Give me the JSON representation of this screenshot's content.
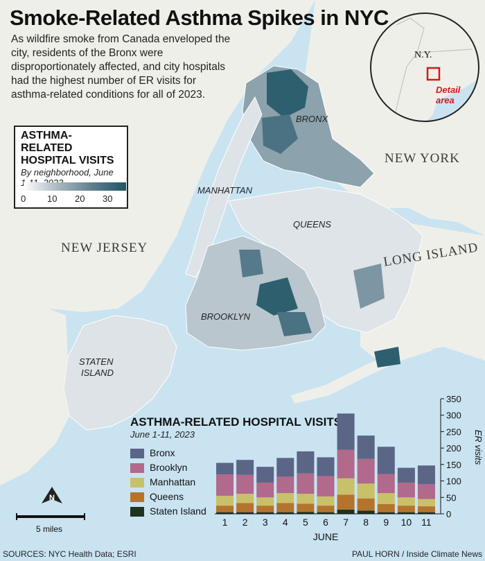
{
  "title": "Smoke-Related Asthma Spikes in NYC",
  "intro": "As wildfire smoke from Canada enveloped the city, residents of the Bronx were disproportionately affected, and city hospitals had the highest number of ER visits for asthma-related conditions for all of 2023.",
  "map_legend": {
    "title": "ASTHMA-RELATED HOSPITAL VISITS",
    "subtitle": "By neighborhood, June 1-11, 2023",
    "ticks": [
      "0",
      "10",
      "20",
      "30"
    ],
    "colors": [
      "#ffffff",
      "#aab8c0",
      "#5f7f8e",
      "#1f5564"
    ]
  },
  "map_labels": {
    "bronx": "BRONX",
    "manhattan": "MANHATTAN",
    "queens": "QUEENS",
    "brooklyn": "BROOKLYN",
    "staten_island_1": "STATEN",
    "staten_island_2": "ISLAND",
    "new_york": "NEW YORK",
    "new_jersey": "NEW JERSEY",
    "long_island": "LONG ISLAND"
  },
  "inset": {
    "state_label": "N.Y.",
    "detail_label_1": "Detail",
    "detail_label_2": "area",
    "highlight_color": "#d01a1a"
  },
  "scale": {
    "label": "5 miles"
  },
  "north_arrow": {
    "icon": "north-arrow-icon",
    "letter": "N"
  },
  "colors": {
    "water": "#c9e3f1",
    "land": "#efefe9",
    "borough_base": "#e6eaec"
  },
  "chart_data": {
    "type": "bar",
    "stacked": true,
    "title": "ASTHMA-RELATED HOSPITAL VISITS",
    "subtitle": "June 1-11, 2023",
    "xlabel": "JUNE",
    "ylabel": "ER visits",
    "categories": [
      "1",
      "2",
      "3",
      "4",
      "5",
      "6",
      "7",
      "8",
      "9",
      "10",
      "11"
    ],
    "ylim": [
      0,
      350
    ],
    "yticks": [
      0,
      50,
      100,
      150,
      200,
      250,
      300,
      350
    ],
    "series": [
      {
        "name": "Staten Island",
        "color": "#1e3320",
        "values": [
          5,
          5,
          5,
          5,
          6,
          5,
          13,
          10,
          5,
          5,
          5
        ]
      },
      {
        "name": "Queens",
        "color": "#b5742c",
        "values": [
          20,
          28,
          20,
          28,
          25,
          20,
          45,
          37,
          25,
          20,
          18
        ]
      },
      {
        "name": "Manhattan",
        "color": "#c9c06a",
        "values": [
          30,
          28,
          25,
          30,
          30,
          28,
          50,
          45,
          33,
          25,
          22
        ]
      },
      {
        "name": "Brooklyn",
        "color": "#b1698c",
        "values": [
          65,
          58,
          45,
          50,
          62,
          62,
          87,
          75,
          58,
          45,
          45
        ]
      },
      {
        "name": "Bronx",
        "color": "#5b6586",
        "values": [
          35,
          45,
          48,
          57,
          67,
          57,
          110,
          71,
          83,
          45,
          57
        ]
      }
    ],
    "legend_order": [
      "Bronx",
      "Brooklyn",
      "Manhattan",
      "Queens",
      "Staten Island"
    ]
  },
  "footer": {
    "sources": "SOURCES: NYC Health Data; ESRI",
    "credit": "PAUL HORN / Inside Climate News"
  }
}
